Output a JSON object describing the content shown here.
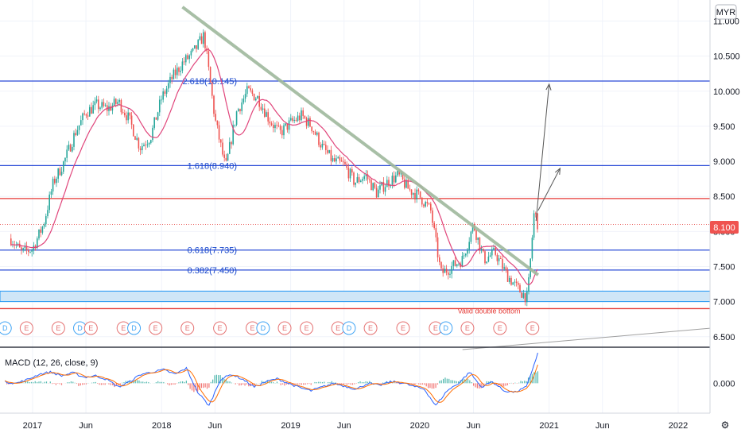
{
  "chart_data": {
    "type": "candlestick",
    "currency_label": "MYR",
    "last_price_label": "8.100",
    "colors": {
      "up": "#26a69a",
      "down": "#ef5350",
      "ma": "#e0457b",
      "trendline": "#9fb89c",
      "fib": "#2a4bd7",
      "resistance": "#e53935",
      "zone_fill": "#cfe6f7",
      "zone_border": "#2196f3",
      "macd": "#2962ff",
      "signal": "#ff6d00",
      "arrow": "#555555",
      "event_e": "#e57373",
      "event_d": "#42a5f5"
    },
    "price_axis": {
      "ticks": [
        "11.000",
        "10.500",
        "10.000",
        "9.500",
        "9.000",
        "8.500",
        "8.000",
        "7.500",
        "7.000",
        "6.500"
      ],
      "min": 6.35,
      "max": 11.3
    },
    "time_axis": {
      "labels": [
        "2017",
        "Jun",
        "2018",
        "Jun",
        "2019",
        "Jun",
        "2020",
        "Jun",
        "2021",
        "Jun",
        "2022"
      ]
    },
    "price_series": [
      {
        "t": "2016-11",
        "v": 7.9
      },
      {
        "t": "2016-12",
        "v": 7.7
      },
      {
        "t": "2017-01",
        "v": 7.75
      },
      {
        "t": "2017-02",
        "v": 8.1
      },
      {
        "t": "2017-03",
        "v": 8.7
      },
      {
        "t": "2017-04",
        "v": 9.0
      },
      {
        "t": "2017-05",
        "v": 9.4
      },
      {
        "t": "2017-06",
        "v": 9.7
      },
      {
        "t": "2017-07",
        "v": 9.8
      },
      {
        "t": "2017-08",
        "v": 9.75
      },
      {
        "t": "2017-09",
        "v": 9.85
      },
      {
        "t": "2017-10",
        "v": 9.6
      },
      {
        "t": "2017-11",
        "v": 9.2
      },
      {
        "t": "2017-12",
        "v": 9.35
      },
      {
        "t": "2018-01",
        "v": 9.9
      },
      {
        "t": "2018-02",
        "v": 10.2
      },
      {
        "t": "2018-03",
        "v": 10.4
      },
      {
        "t": "2018-04",
        "v": 10.55
      },
      {
        "t": "2018-05",
        "v": 10.8
      },
      {
        "t": "2018-06",
        "v": 9.6
      },
      {
        "t": "2018-07",
        "v": 8.9
      },
      {
        "t": "2018-08",
        "v": 9.7
      },
      {
        "t": "2018-09",
        "v": 10.0
      },
      {
        "t": "2018-10",
        "v": 9.9
      },
      {
        "t": "2018-11",
        "v": 9.6
      },
      {
        "t": "2018-12",
        "v": 9.4
      },
      {
        "t": "2019-01",
        "v": 9.55
      },
      {
        "t": "2019-02",
        "v": 9.65
      },
      {
        "t": "2019-03",
        "v": 9.5
      },
      {
        "t": "2019-04",
        "v": 9.2
      },
      {
        "t": "2019-05",
        "v": 9.0
      },
      {
        "t": "2019-06",
        "v": 8.95
      },
      {
        "t": "2019-07",
        "v": 8.7
      },
      {
        "t": "2019-08",
        "v": 8.8
      },
      {
        "t": "2019-09",
        "v": 8.55
      },
      {
        "t": "2019-10",
        "v": 8.7
      },
      {
        "t": "2019-11",
        "v": 8.8
      },
      {
        "t": "2019-12",
        "v": 8.6
      },
      {
        "t": "2020-01",
        "v": 8.5
      },
      {
        "t": "2020-02",
        "v": 8.3
      },
      {
        "t": "2020-03",
        "v": 7.4
      },
      {
        "t": "2020-04",
        "v": 7.5
      },
      {
        "t": "2020-05",
        "v": 7.6
      },
      {
        "t": "2020-06",
        "v": 8.1
      },
      {
        "t": "2020-07",
        "v": 7.6
      },
      {
        "t": "2020-08",
        "v": 7.7
      },
      {
        "t": "2020-09",
        "v": 7.4
      },
      {
        "t": "2020-10",
        "v": 7.2
      },
      {
        "t": "2020-11",
        "v": 7.05
      },
      {
        "t": "2020-11-20",
        "v": 8.3
      },
      {
        "t": "2020-11-30",
        "v": 8.1
      }
    ],
    "fib_levels": [
      {
        "label": "2.618(10.145)",
        "value": 10.145
      },
      {
        "label": "1.618(8.940)",
        "value": 8.94
      },
      {
        "label": "0.618(7.735)",
        "value": 7.735
      },
      {
        "label": "0.382(7.450)",
        "value": 7.45
      }
    ],
    "horizontal_lines": [
      {
        "name": "resistance",
        "value": 8.47
      },
      {
        "name": "support",
        "value": 6.9
      }
    ],
    "support_zone": {
      "low": 7.0,
      "high": 7.15
    },
    "dotted_line_value": 8.1,
    "trendline": {
      "from": {
        "t": "2018-03",
        "v": 11.2
      },
      "to": {
        "t": "2020-12",
        "v": 7.38
      }
    },
    "annotation": "Valid double bottom",
    "projection_arrows": [
      {
        "from": {
          "t": "2020-11-25",
          "v": 8.15
        },
        "to": {
          "t": "2021-01",
          "v": 10.1
        }
      },
      {
        "from": {
          "t": "2020-12",
          "v": 8.3
        },
        "to": {
          "t": "2021-02",
          "v": 8.9
        }
      }
    ],
    "event_markers": [
      {
        "label": "D",
        "t": "2016-10"
      },
      {
        "label": "E",
        "t": "2016-12"
      },
      {
        "label": "E",
        "t": "2017-03"
      },
      {
        "label": "D",
        "t": "2017-05"
      },
      {
        "label": "E",
        "t": "2017-06"
      },
      {
        "label": "E",
        "t": "2017-09"
      },
      {
        "label": "D",
        "t": "2017-10"
      },
      {
        "label": "E",
        "t": "2017-12"
      },
      {
        "label": "E",
        "t": "2018-03"
      },
      {
        "label": "E",
        "t": "2018-06"
      },
      {
        "label": "E",
        "t": "2018-09"
      },
      {
        "label": "D",
        "t": "2018-10"
      },
      {
        "label": "E",
        "t": "2018-12"
      },
      {
        "label": "E",
        "t": "2019-02"
      },
      {
        "label": "E",
        "t": "2019-05"
      },
      {
        "label": "D",
        "t": "2019-06"
      },
      {
        "label": "E",
        "t": "2019-08"
      },
      {
        "label": "E",
        "t": "2019-11"
      },
      {
        "label": "E",
        "t": "2020-02"
      },
      {
        "label": "D",
        "t": "2020-03"
      },
      {
        "label": "E",
        "t": "2020-05"
      },
      {
        "label": "E",
        "t": "2020-08"
      },
      {
        "label": "E",
        "t": "2020-11"
      }
    ],
    "macd": {
      "label": "MACD (12, 26, close, 9)",
      "axis_tick": "0.000",
      "values": [
        0.02,
        0.0,
        0.05,
        0.12,
        0.15,
        0.1,
        0.14,
        0.08,
        0.1,
        0.05,
        -0.05,
        0.02,
        0.12,
        0.15,
        0.18,
        0.12,
        0.2,
        -0.12,
        -0.3,
        0.05,
        0.12,
        0.05,
        -0.05,
        0.02,
        0.06,
        0.0,
        -0.06,
        -0.1,
        -0.05,
        0.0,
        -0.04,
        -0.08,
        0.0,
        -0.03,
        0.02,
        0.01,
        -0.04,
        -0.08,
        -0.3,
        -0.1,
        0.0,
        0.15,
        -0.05,
        0.02,
        -0.1,
        -0.12,
        -0.05,
        0.4
      ],
      "range": [
        -0.4,
        0.45
      ]
    }
  }
}
